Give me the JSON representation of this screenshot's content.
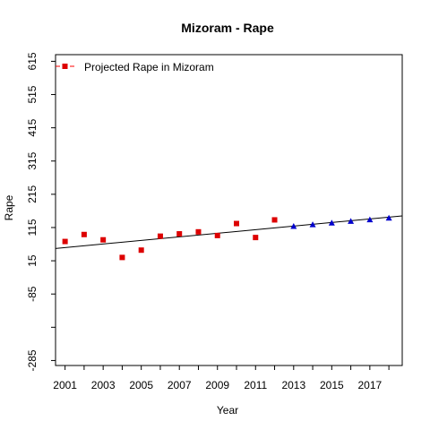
{
  "chart_data": {
    "type": "scatter",
    "title": "Mizoram  -  Rape",
    "xlabel": "Year",
    "ylabel": "Rape",
    "xlim": [
      2000.5,
      2018.7
    ],
    "ylim": [
      -300,
      635
    ],
    "x_ticks": [
      2001,
      2003,
      2005,
      2007,
      2009,
      2011,
      2013,
      2015,
      2017
    ],
    "x_minor_ticks": [
      2001,
      2002,
      2003,
      2004,
      2005,
      2006,
      2007,
      2008,
      2009,
      2010,
      2011,
      2012,
      2013,
      2014,
      2015,
      2016,
      2017,
      2018
    ],
    "y_ticks": [
      -285,
      -185,
      -85,
      15,
      115,
      215,
      315,
      415,
      515,
      615
    ],
    "y_tick_labels": [
      "-285",
      "",
      "-85",
      "15",
      "115",
      "215",
      "315",
      "415",
      "515",
      "615"
    ],
    "grid": false,
    "legend": {
      "position": "top-left",
      "entries": [
        "Projected Rape  in  Mizoram"
      ]
    },
    "legend_colors": {
      "line": "#ff0000",
      "marker": "#dd0000"
    },
    "series": [
      {
        "marker": "square",
        "color": "#dd0000",
        "x": [
          2001,
          2002,
          2003,
          2004,
          2005,
          2006,
          2007,
          2008,
          2009,
          2010,
          2011,
          2012
        ],
        "y": [
          73,
          94,
          78,
          25,
          47,
          89,
          96,
          102,
          91,
          127,
          85,
          138
        ]
      },
      {
        "marker": "triangle",
        "color": "#0000cc",
        "x": [
          2013,
          2014,
          2015,
          2016,
          2017,
          2018
        ],
        "y": [
          119,
          124,
          129,
          134,
          139,
          144
        ]
      }
    ],
    "trend_line": {
      "color": "#000000",
      "x": [
        2000.5,
        2018.7
      ],
      "y": [
        52,
        150
      ]
    }
  }
}
